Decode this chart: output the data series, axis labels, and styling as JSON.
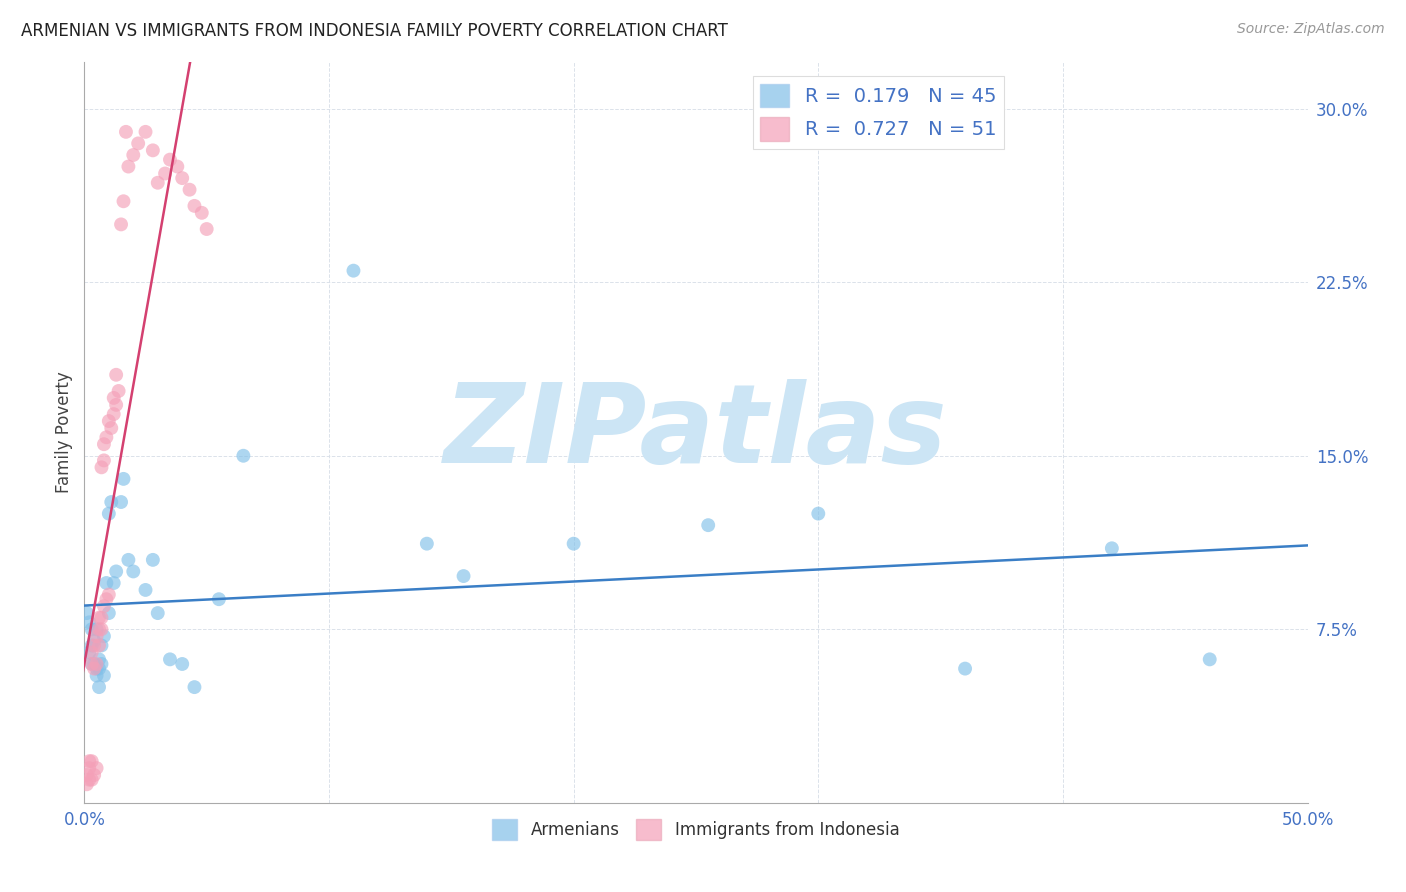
{
  "title": "ARMENIAN VS IMMIGRANTS FROM INDONESIA FAMILY POVERTY CORRELATION CHART",
  "source": "Source: ZipAtlas.com",
  "ylabel": "Family Poverty",
  "xlim": [
    0.0,
    0.5
  ],
  "ylim": [
    0.0,
    0.32
  ],
  "R_armenian": 0.179,
  "N_armenian": 45,
  "R_indonesia": 0.727,
  "N_indonesia": 51,
  "color_armenian": "#82c0e8",
  "color_indonesia": "#f4a0b8",
  "trendline_armenian": "#3a7ec6",
  "trendline_indonesia": "#d44070",
  "watermark_text": "ZIPatlas",
  "watermark_color": "#cce5f5",
  "armenian_x": [
    0.001,
    0.002,
    0.002,
    0.003,
    0.003,
    0.003,
    0.004,
    0.004,
    0.005,
    0.005,
    0.005,
    0.006,
    0.006,
    0.006,
    0.007,
    0.007,
    0.008,
    0.008,
    0.009,
    0.01,
    0.01,
    0.011,
    0.012,
    0.013,
    0.015,
    0.016,
    0.018,
    0.02,
    0.025,
    0.028,
    0.03,
    0.035,
    0.04,
    0.045,
    0.055,
    0.065,
    0.11,
    0.14,
    0.155,
    0.2,
    0.255,
    0.3,
    0.36,
    0.42,
    0.46
  ],
  "armenian_y": [
    0.082,
    0.078,
    0.065,
    0.075,
    0.068,
    0.06,
    0.07,
    0.06,
    0.058,
    0.055,
    0.075,
    0.058,
    0.062,
    0.05,
    0.068,
    0.06,
    0.055,
    0.072,
    0.095,
    0.082,
    0.125,
    0.13,
    0.095,
    0.1,
    0.13,
    0.14,
    0.105,
    0.1,
    0.092,
    0.105,
    0.082,
    0.062,
    0.06,
    0.05,
    0.088,
    0.15,
    0.23,
    0.112,
    0.098,
    0.112,
    0.12,
    0.125,
    0.058,
    0.11,
    0.062
  ],
  "indonesia_x": [
    0.001,
    0.001,
    0.002,
    0.002,
    0.002,
    0.003,
    0.003,
    0.003,
    0.003,
    0.004,
    0.004,
    0.004,
    0.005,
    0.005,
    0.005,
    0.006,
    0.006,
    0.006,
    0.007,
    0.007,
    0.007,
    0.008,
    0.008,
    0.008,
    0.009,
    0.009,
    0.01,
    0.01,
    0.011,
    0.012,
    0.012,
    0.013,
    0.013,
    0.014,
    0.015,
    0.016,
    0.017,
    0.018,
    0.02,
    0.022,
    0.025,
    0.028,
    0.03,
    0.033,
    0.035,
    0.038,
    0.04,
    0.043,
    0.045,
    0.048,
    0.05
  ],
  "indonesia_y": [
    0.008,
    0.012,
    0.01,
    0.018,
    0.015,
    0.01,
    0.018,
    0.06,
    0.065,
    0.068,
    0.058,
    0.012,
    0.06,
    0.072,
    0.015,
    0.068,
    0.075,
    0.08,
    0.075,
    0.08,
    0.145,
    0.148,
    0.155,
    0.085,
    0.088,
    0.158,
    0.165,
    0.09,
    0.162,
    0.168,
    0.175,
    0.172,
    0.185,
    0.178,
    0.25,
    0.26,
    0.29,
    0.275,
    0.28,
    0.285,
    0.29,
    0.282,
    0.268,
    0.272,
    0.278,
    0.275,
    0.27,
    0.265,
    0.258,
    0.255,
    0.248
  ]
}
